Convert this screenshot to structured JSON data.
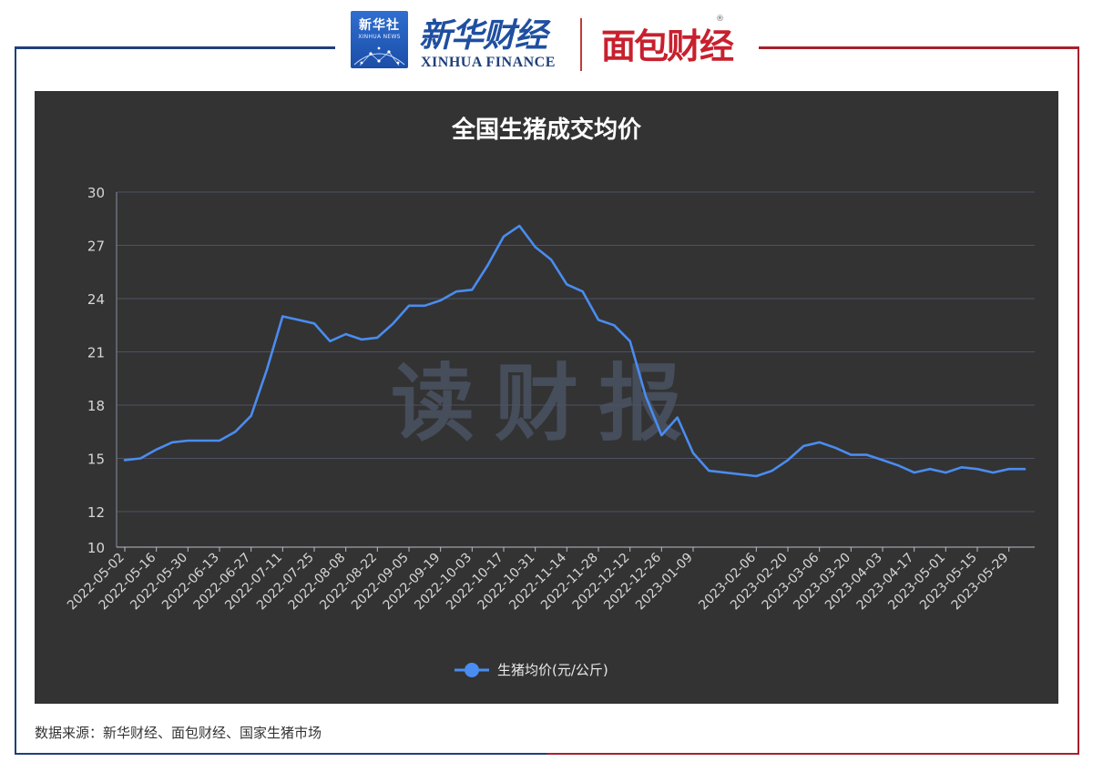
{
  "header": {
    "xinhua_logo_cn": "新华社",
    "xinhua_logo_en": "XINHUA NEWS",
    "xinhua_finance_cn": "新华财经",
    "xinhua_finance_en": "XINHUA FINANCE",
    "mianbao_logo": "面包财经",
    "mianbao_registered": "®",
    "brand_blue": "#1f3f7a",
    "brand_red": "#a8202e"
  },
  "watermark": "读财报",
  "source_note": "数据来源：新华财经、面包财经、国家生猪市场",
  "chart_data": {
    "type": "line",
    "title": "全国生猪成交均价",
    "xlabel": "",
    "ylabel": "",
    "ylim": [
      10,
      30
    ],
    "yticks": [
      "10",
      "12",
      "15",
      "18",
      "21",
      "24",
      "27",
      "30"
    ],
    "grid": true,
    "legend_position": "bottom-center",
    "x_tick_labels": [
      "2022-05-02",
      "2022-05-16",
      "2022-05-30",
      "2022-06-13",
      "2022-06-27",
      "2022-07-11",
      "2022-07-25",
      "2022-08-08",
      "2022-08-22",
      "2022-09-05",
      "2022-09-19",
      "2022-10-03",
      "2022-10-17",
      "2022-10-31",
      "2022-11-14",
      "2022-11-28",
      "2022-12-12",
      "2022-12-26",
      "2023-01-09",
      "2023-02-06",
      "2023-02-20",
      "2023-03-06",
      "2023-03-20",
      "2023-04-03",
      "2023-04-17",
      "2023-05-01",
      "2023-05-15",
      "2023-05-29"
    ],
    "x": [
      "2022-05-02",
      "2022-05-09",
      "2022-05-16",
      "2022-05-23",
      "2022-05-30",
      "2022-06-06",
      "2022-06-13",
      "2022-06-20",
      "2022-06-27",
      "2022-07-04",
      "2022-07-11",
      "2022-07-18",
      "2022-07-25",
      "2022-08-01",
      "2022-08-08",
      "2022-08-15",
      "2022-08-22",
      "2022-08-29",
      "2022-09-05",
      "2022-09-12",
      "2022-09-19",
      "2022-09-26",
      "2022-10-03",
      "2022-10-10",
      "2022-10-17",
      "2022-10-24",
      "2022-10-31",
      "2022-11-07",
      "2022-11-14",
      "2022-11-21",
      "2022-11-28",
      "2022-12-05",
      "2022-12-12",
      "2022-12-19",
      "2022-12-26",
      "2023-01-02",
      "2023-01-09",
      "2023-01-16",
      "2023-02-06",
      "2023-02-13",
      "2023-02-20",
      "2023-02-27",
      "2023-03-06",
      "2023-03-13",
      "2023-03-20",
      "2023-03-27",
      "2023-04-03",
      "2023-04-10",
      "2023-04-17",
      "2023-04-24",
      "2023-05-01",
      "2023-05-08",
      "2023-05-15",
      "2023-05-22",
      "2023-05-29",
      "2023-06-05"
    ],
    "series": [
      {
        "name": "生猪均价(元/公斤)",
        "color": "#4a8cf0",
        "values": [
          14.9,
          15.0,
          15.5,
          15.9,
          16.0,
          16.0,
          16.0,
          16.5,
          17.4,
          20.0,
          23.0,
          22.8,
          22.6,
          21.6,
          22.0,
          21.7,
          21.8,
          22.6,
          23.6,
          23.6,
          23.9,
          24.4,
          24.5,
          25.9,
          27.5,
          28.1,
          26.9,
          26.2,
          24.8,
          24.4,
          22.8,
          22.5,
          21.6,
          18.5,
          16.3,
          17.3,
          15.3,
          14.3,
          14.0,
          14.3,
          14.9,
          15.7,
          15.9,
          15.6,
          15.2,
          15.2,
          14.9,
          14.6,
          14.2,
          14.4,
          14.2,
          14.5,
          14.4,
          14.2,
          14.4,
          14.4
        ]
      }
    ]
  }
}
